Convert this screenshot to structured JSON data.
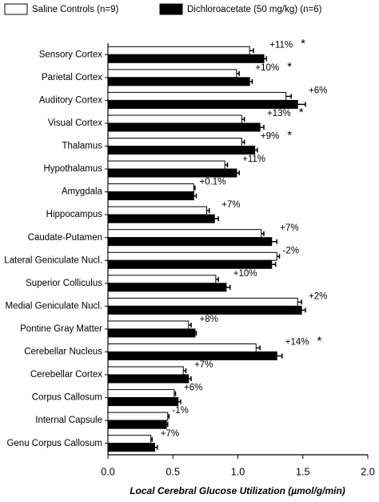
{
  "chart_data": {
    "type": "hbar",
    "x_label": "Local Cerebral Glucose Utilization (µmol/g/min)",
    "categories": [
      "Sensory Cortex",
      "Parietal Cortex",
      "Auditory Cortex",
      "Visual Cortex",
      "Thalamus",
      "Hypothalamus",
      "Amygdala",
      "Hippocampus",
      "Caudate-Putamen",
      "Lateral Geniculate Nucl.",
      "Superior Colliculus",
      "Medial Geniculate Nucl.",
      "Pontine Gray Matter",
      "Cerebellar Nucleus",
      "Cerebellar Cortex",
      "Corpus Callosum",
      "Internal Capsule",
      "Genu Corpus Callosum"
    ],
    "series": [
      {
        "name": "Saline Controls (n=9)",
        "color": "#ffffff",
        "values": [
          1.09,
          0.99,
          1.37,
          1.03,
          1.03,
          0.9,
          0.66,
          0.76,
          1.18,
          1.3,
          0.83,
          1.46,
          0.62,
          1.14,
          0.58,
          0.51,
          0.46,
          0.33
        ],
        "errors": [
          0.03,
          0.02,
          0.04,
          0.02,
          0.02,
          0.02,
          0.01,
          0.02,
          0.02,
          0.02,
          0.02,
          0.03,
          0.02,
          0.03,
          0.02,
          0.01,
          0.01,
          0.01
        ]
      },
      {
        "name": "Dichloroacetate (50 mg/kg) (n=6)",
        "color": "#000000",
        "values": [
          1.2,
          1.09,
          1.46,
          1.17,
          1.13,
          0.99,
          0.66,
          0.82,
          1.26,
          1.26,
          0.91,
          1.49,
          0.67,
          1.3,
          0.62,
          0.54,
          0.45,
          0.36
        ],
        "errors": [
          0.02,
          0.02,
          0.06,
          0.03,
          0.02,
          0.02,
          0.02,
          0.03,
          0.04,
          0.03,
          0.03,
          0.03,
          0.01,
          0.04,
          0.02,
          0.02,
          0.01,
          0.02
        ]
      }
    ],
    "annotations": [
      "+11%",
      "+10%",
      "+6%",
      "+13%",
      "+9%",
      "+11%",
      "+0.1%",
      "+7%",
      "+7%",
      "-2%",
      "+10%",
      "+2%",
      "+8%",
      "+14%",
      "+7%",
      "+6%",
      "-1%",
      "+7%"
    ],
    "stars": [
      "*",
      "*",
      null,
      "*",
      "*",
      null,
      null,
      null,
      null,
      null,
      null,
      null,
      null,
      "*",
      null,
      null,
      null,
      null
    ],
    "xlim": [
      0,
      2
    ],
    "xticks": [
      {
        "value": 0,
        "label": "0.0"
      },
      0.5,
      {
        "value": 1,
        "label": "1.0"
      },
      1.5,
      {
        "value": 2,
        "label": "2.0"
      }
    ]
  }
}
